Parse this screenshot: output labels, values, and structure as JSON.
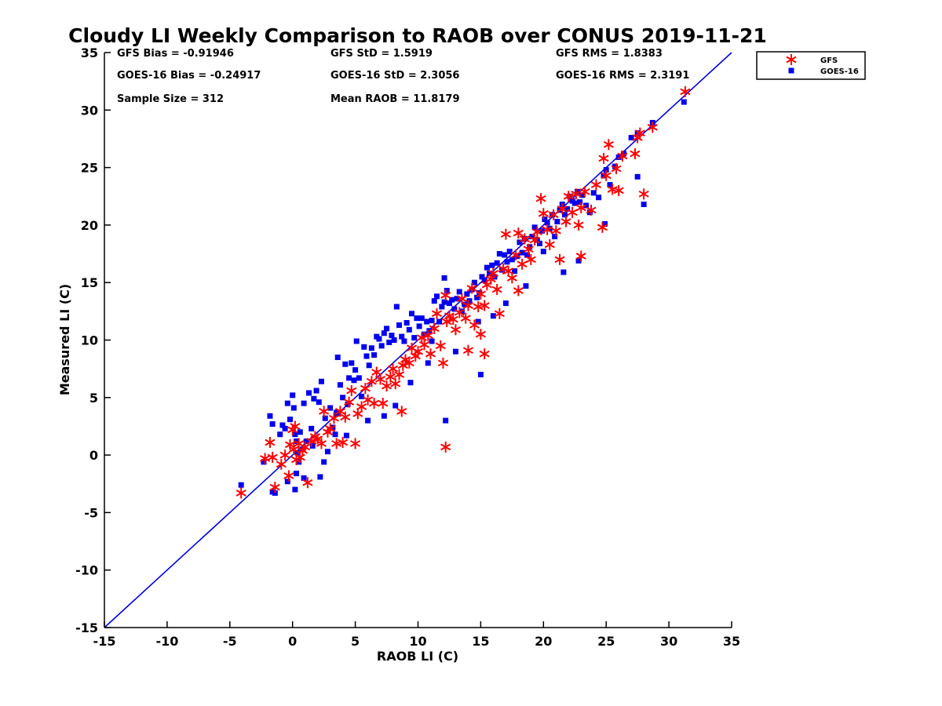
{
  "chart_data": {
    "type": "scatter",
    "title": "Cloudy LI Weekly Comparison to RAOB over CONUS 2019-11-21",
    "xlabel": "RAOB LI (C)",
    "ylabel": "Measured LI (C)",
    "xlim": [
      -15,
      35
    ],
    "ylim": [
      -15,
      35
    ],
    "x_ticks": [
      -15,
      -10,
      -5,
      0,
      5,
      10,
      15,
      20,
      25,
      30,
      35
    ],
    "y_ticks": [
      -15,
      -10,
      -5,
      0,
      5,
      10,
      15,
      20,
      25,
      30,
      35
    ],
    "x_tick_labels": [
      "-15",
      "-10",
      "-5",
      "0",
      "5",
      "10",
      "15",
      "20",
      "25",
      "30",
      "35"
    ],
    "y_tick_labels": [
      "-15",
      "-10",
      "-5",
      "0",
      "5",
      "10",
      "15",
      "20",
      "25",
      "30",
      "35"
    ],
    "grid": false,
    "legend_position": "top-right, outside plot",
    "reference_line": {
      "from": [
        -15,
        -15
      ],
      "to": [
        35,
        35
      ],
      "color": "#0000dd"
    },
    "stats": [
      [
        "GFS Bias = -0.91946",
        "GFS StD = 1.5919",
        "GFS RMS = 1.8383"
      ],
      [
        "GOES-16 Bias = -0.24917",
        "GOES-16 StD = 2.3056",
        "GOES-16 RMS = 2.3191"
      ],
      [
        "Sample Size = 312",
        "Mean RAOB = 11.8179",
        ""
      ]
    ],
    "series": [
      {
        "name": "GFS",
        "marker": "asterisk",
        "color": "#ff0000",
        "x": [
          -4.1,
          -2.2,
          -1.8,
          -1.6,
          -1.4,
          -0.9,
          -0.6,
          -0.3,
          -0.2,
          0.0,
          0.1,
          0.2,
          0.3,
          0.5,
          0.6,
          0.8,
          1.0,
          1.2,
          1.5,
          1.8,
          2.0,
          2.3,
          2.5,
          2.8,
          3.0,
          3.3,
          3.5,
          3.8,
          4.0,
          4.2,
          4.5,
          4.7,
          5.0,
          5.2,
          5.5,
          5.8,
          6.0,
          6.3,
          6.5,
          6.7,
          7.0,
          7.2,
          7.5,
          7.8,
          8.0,
          8.2,
          8.5,
          8.8,
          9.0,
          9.3,
          9.5,
          9.8,
          10.0,
          10.3,
          10.5,
          10.8,
          11.0,
          11.3,
          11.5,
          11.8,
          12.0,
          12.2,
          12.3,
          12.5,
          12.8,
          13.0,
          13.3,
          13.5,
          13.8,
          14.0,
          14.3,
          14.5,
          14.8,
          15.0,
          15.0,
          15.3,
          15.5,
          15.8,
          16.0,
          16.3,
          16.5,
          16.8,
          17.0,
          17.2,
          17.5,
          17.8,
          18.0,
          18.3,
          18.5,
          18.8,
          19.0,
          19.3,
          19.5,
          19.8,
          20.0,
          20.3,
          20.5,
          20.8,
          21.0,
          21.3,
          21.5,
          21.8,
          22.0,
          22.3,
          22.6,
          22.8,
          23.0,
          23.3,
          23.8,
          24.2,
          24.7,
          24.8,
          25.0,
          25.2,
          25.5,
          25.8,
          26.0,
          26.3,
          27.3,
          27.5,
          27.7,
          28.0,
          28.7,
          31.3,
          8.7,
          12.2,
          14.0,
          15.3,
          18.0,
          23.0
        ],
        "y": [
          -3.3,
          -0.3,
          1.1,
          -0.2,
          -2.8,
          -0.8,
          0.0,
          -1.8,
          0.9,
          2.2,
          0.5,
          2.5,
          -0.4,
          1.0,
          -0.2,
          0.4,
          0.7,
          -2.4,
          1.2,
          1.6,
          1.4,
          1.0,
          3.8,
          2.0,
          2.3,
          3.2,
          1.0,
          3.8,
          1.1,
          3.3,
          4.6,
          5.6,
          1.0,
          3.6,
          4.2,
          5.8,
          4.8,
          6.4,
          4.5,
          7.2,
          6.6,
          4.5,
          6.0,
          6.8,
          7.5,
          6.2,
          7.0,
          7.8,
          8.3,
          8.0,
          9.3,
          8.6,
          9.0,
          10.2,
          9.6,
          10.4,
          8.8,
          11.0,
          12.3,
          9.5,
          8.0,
          13.9,
          11.6,
          12.1,
          11.8,
          10.9,
          12.4,
          13.6,
          11.9,
          13.0,
          14.5,
          11.3,
          12.9,
          10.5,
          14.0,
          13.0,
          14.8,
          15.3,
          15.8,
          14.4,
          12.3,
          16.2,
          19.2,
          16.0,
          15.4,
          17.4,
          14.3,
          16.6,
          18.8,
          17.9,
          17.0,
          18.7,
          19.4,
          22.3,
          21.0,
          19.6,
          18.3,
          20.9,
          19.5,
          17.0,
          21.4,
          20.3,
          22.5,
          21.1,
          22.7,
          20.0,
          21.5,
          22.9,
          21.3,
          23.5,
          19.8,
          25.8,
          24.3,
          27.0,
          23.1,
          24.9,
          23.0,
          26.0,
          26.2,
          27.6,
          28.0,
          22.7,
          28.5,
          31.6,
          3.8,
          0.7,
          9.1,
          8.8,
          19.3,
          17.3
        ]
      },
      {
        "name": "GOES-16",
        "marker": "square",
        "color": "#0000ee",
        "x": [
          -4.1,
          -2.3,
          -1.8,
          -1.6,
          -1.4,
          -1.0,
          -0.8,
          -0.6,
          -0.4,
          -0.2,
          0.0,
          0.1,
          0.2,
          0.3,
          0.4,
          0.5,
          0.6,
          0.8,
          0.9,
          1.1,
          1.3,
          1.5,
          1.7,
          1.9,
          2.1,
          2.3,
          2.5,
          2.6,
          2.8,
          3.0,
          3.2,
          3.4,
          3.6,
          3.8,
          4.0,
          4.2,
          4.4,
          4.5,
          4.7,
          4.9,
          5.1,
          5.3,
          5.5,
          5.7,
          5.9,
          6.1,
          6.3,
          6.5,
          6.7,
          6.9,
          7.1,
          7.3,
          7.5,
          7.7,
          7.9,
          8.1,
          8.3,
          8.5,
          8.7,
          8.9,
          9.1,
          9.3,
          9.5,
          9.7,
          9.9,
          10.1,
          10.3,
          10.5,
          10.7,
          10.9,
          11.1,
          11.3,
          11.5,
          11.7,
          11.9,
          12.1,
          12.3,
          12.5,
          12.7,
          12.9,
          13.1,
          13.3,
          13.5,
          13.7,
          13.9,
          14.1,
          14.3,
          14.5,
          14.7,
          14.9,
          15.1,
          15.3,
          15.5,
          15.7,
          15.9,
          16.1,
          16.3,
          16.5,
          16.7,
          16.9,
          17.1,
          17.3,
          17.5,
          17.7,
          17.9,
          18.1,
          18.3,
          18.5,
          18.7,
          18.9,
          19.1,
          19.3,
          19.5,
          19.7,
          19.9,
          20.1,
          20.3,
          20.5,
          20.7,
          20.9,
          21.1,
          21.3,
          21.5,
          21.7,
          21.9,
          22.1,
          22.3,
          22.5,
          22.7,
          22.9,
          23.1,
          23.4,
          23.7,
          24.0,
          24.4,
          24.8,
          25.0,
          25.3,
          25.7,
          26.0,
          26.4,
          27.0,
          27.5,
          28.0,
          28.7,
          31.2,
          -1.6,
          -0.4,
          0.2,
          0.9,
          1.6,
          2.2,
          3.5,
          4.3,
          5.0,
          6.0,
          7.3,
          8.2,
          9.4,
          10.8,
          12.2,
          13.0,
          14.8,
          16.0,
          17.0,
          18.6,
          20.0,
          21.6,
          22.8,
          24.9,
          27.5,
          15.0,
          12.1,
          3.6,
          0.3,
          11.1
        ],
        "y": [
          -2.6,
          -0.6,
          3.4,
          2.7,
          -3.3,
          1.8,
          2.6,
          2.3,
          4.5,
          3.1,
          5.2,
          4.1,
          1.8,
          -1.6,
          0.2,
          -0.6,
          2.0,
          0.5,
          4.5,
          1.2,
          5.4,
          2.3,
          4.9,
          5.6,
          4.6,
          6.4,
          -0.6,
          3.2,
          0.3,
          4.1,
          2.4,
          1.8,
          8.5,
          6.1,
          5.0,
          7.9,
          4.4,
          6.7,
          8.0,
          6.5,
          9.9,
          6.7,
          5.1,
          9.4,
          8.6,
          7.8,
          9.3,
          8.7,
          10.3,
          10.1,
          9.5,
          10.6,
          11.0,
          9.8,
          10.4,
          10.0,
          12.9,
          11.3,
          10.3,
          9.9,
          11.5,
          10.9,
          12.3,
          10.2,
          11.9,
          11.2,
          11.9,
          10.5,
          11.6,
          10.8,
          11.7,
          13.4,
          13.8,
          11.6,
          12.9,
          13.3,
          14.3,
          13.2,
          13.5,
          12.7,
          13.6,
          14.2,
          12.5,
          13.1,
          14.0,
          13.4,
          14.4,
          15.0,
          13.7,
          14.1,
          15.5,
          15.2,
          16.3,
          15.8,
          16.5,
          15.5,
          16.7,
          17.5,
          16.1,
          17.4,
          16.8,
          17.7,
          17.0,
          16.0,
          17.3,
          18.5,
          17.6,
          18.8,
          17.4,
          18.1,
          19.0,
          19.8,
          18.7,
          18.4,
          19.5,
          20.5,
          20.2,
          19.7,
          20.9,
          19.0,
          20.3,
          21.3,
          21.8,
          20.9,
          21.4,
          22.5,
          22.1,
          21.9,
          22.9,
          22.0,
          22.6,
          21.7,
          21.1,
          22.8,
          22.4,
          24.3,
          24.8,
          23.5,
          25.1,
          25.9,
          26.2,
          27.6,
          24.2,
          21.8,
          28.9,
          30.7,
          -3.2,
          -2.3,
          -3.0,
          -2.0,
          0.8,
          -1.9,
          3.7,
          1.7,
          7.4,
          3.0,
          3.4,
          4.3,
          6.3,
          8.0,
          3.0,
          9.0,
          11.6,
          12.1,
          13.2,
          14.7,
          17.7,
          15.9,
          16.9,
          20.1,
          28.0,
          7.0,
          15.4,
          3.6,
          1.2,
          9.9
        ]
      }
    ]
  }
}
